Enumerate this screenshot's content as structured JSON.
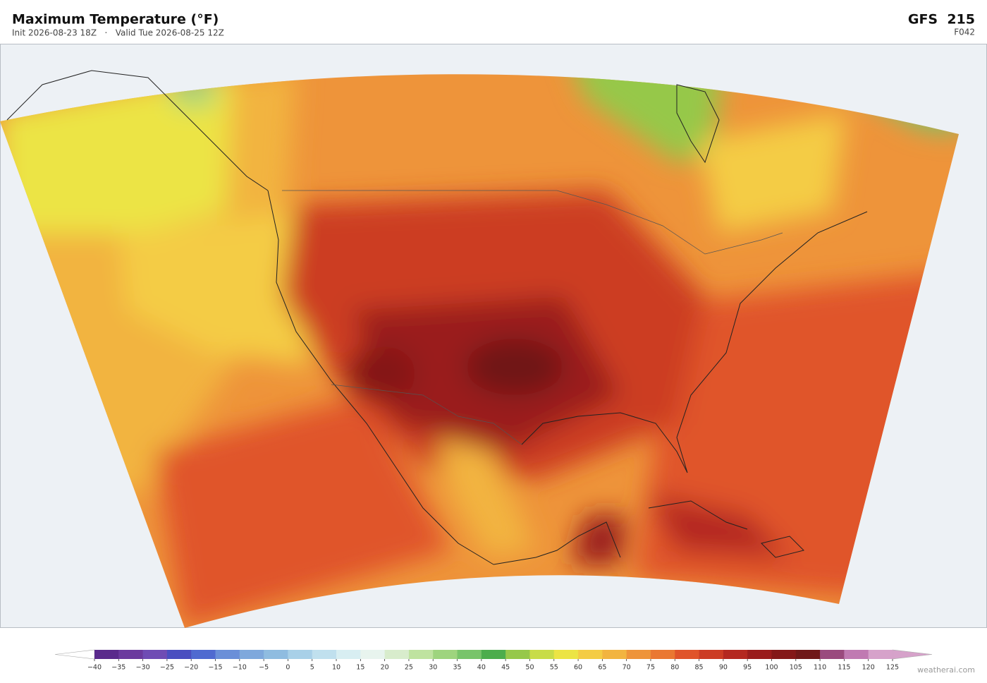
{
  "header": {
    "title": "Maximum Temperature  (°F)",
    "subtitle": "Init 2026-08-23 18Z   ·   Valid Tue 2026-08-25 12Z",
    "model": "GFS  215",
    "forecast_hour": "F042"
  },
  "colorbar": {
    "ticks": [
      {
        "value": -40,
        "label": "−40"
      },
      {
        "value": -35,
        "label": "−35"
      },
      {
        "value": -30,
        "label": "−30"
      },
      {
        "value": -25,
        "label": "−25"
      },
      {
        "value": -20,
        "label": "−20"
      },
      {
        "value": -15,
        "label": "−15"
      },
      {
        "value": -10,
        "label": "−10"
      },
      {
        "value": -5,
        "label": "−5"
      },
      0,
      5,
      10,
      15,
      20,
      25,
      30,
      35,
      40,
      45,
      50,
      55,
      60,
      65,
      70,
      75,
      80,
      85,
      90,
      95,
      100,
      105,
      110,
      115,
      120,
      125
    ],
    "colors": [
      "#5a2a8c",
      "#6b3a9e",
      "#6f4cb4",
      "#4a4ec0",
      "#4f6ad0",
      "#6a8fd8",
      "#7ea8dc",
      "#8fbce0",
      "#a8d0e8",
      "#c0e0ee",
      "#d8eef2",
      "#e8f4ee",
      "#d8eccc",
      "#bfe3a0",
      "#9ed47e",
      "#78c46a",
      "#4cad4c",
      "#96c84a",
      "#c8dc48",
      "#ece444",
      "#f4cc44",
      "#f2b440",
      "#ee943a",
      "#ea7832",
      "#e0542a",
      "#cc3c24",
      "#b42820",
      "#9a1c1c",
      "#841818",
      "#701818",
      "#9a4a7e",
      "#c07ab2",
      "#d6a2ca"
    ],
    "under_color": "#ffffff",
    "over_color": "#d6a2ca"
  },
  "footer": {
    "credit": "weatherai.com"
  }
}
